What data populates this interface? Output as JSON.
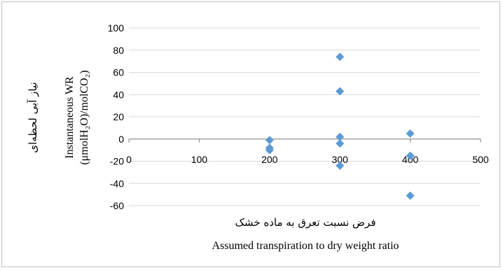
{
  "chart_data": {
    "type": "scatter",
    "title": "",
    "xlabel_fa": "فرض نسبت تعرق به ماده خشک",
    "xlabel_en": "Assumed transpiration to dry weight ratio",
    "ylabel_fa": "نیاز آبی لحظه‌ای",
    "ylabel_en_line1": "Instantaneous WR",
    "ylabel_en_line2": "(μmolH₂O)/molCO₂)",
    "xlim": [
      0,
      500
    ],
    "ylim": [
      -60,
      100
    ],
    "x_ticks": [
      "0",
      "100",
      "200",
      "300",
      "400",
      "500"
    ],
    "y_ticks": [
      "100",
      "80",
      "60",
      "40",
      "20",
      "0",
      "-20",
      "-40",
      "-60"
    ],
    "grid": true,
    "marker_color": "#5b9bd5",
    "series": [
      {
        "points": [
          {
            "x": 200,
            "y": -1
          },
          {
            "x": 200,
            "y": -8
          },
          {
            "x": 200,
            "y": -10
          },
          {
            "x": 300,
            "y": 74
          },
          {
            "x": 300,
            "y": 43
          },
          {
            "x": 300,
            "y": 2
          },
          {
            "x": 300,
            "y": -4
          },
          {
            "x": 300,
            "y": -24
          },
          {
            "x": 400,
            "y": 5
          },
          {
            "x": 400,
            "y": -15
          },
          {
            "x": 400,
            "y": -51
          }
        ]
      }
    ]
  }
}
